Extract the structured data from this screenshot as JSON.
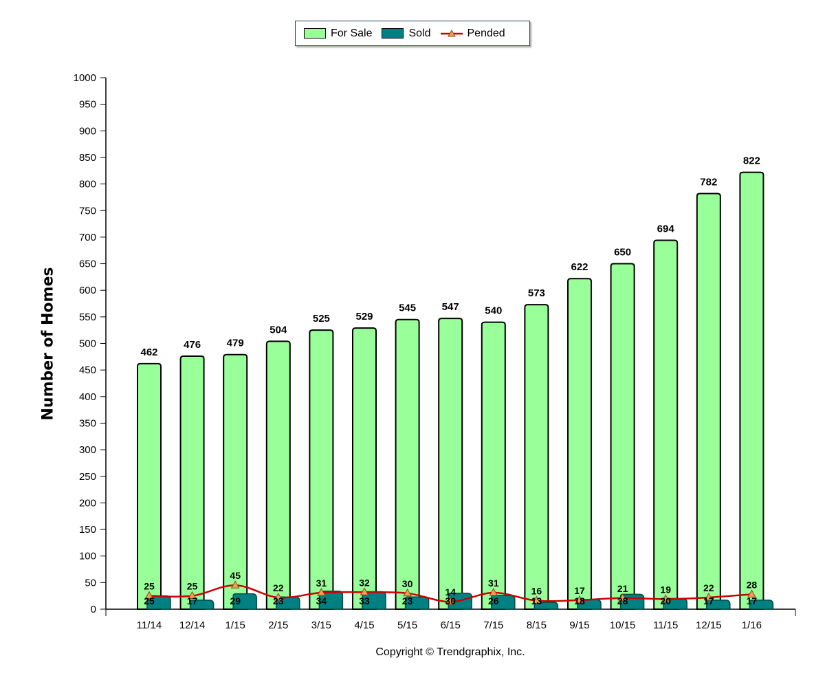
{
  "legend": {
    "for_sale": "For Sale",
    "sold": "Sold",
    "pended": "Pended"
  },
  "copyright": "Copyright © Trendgraphix, Inc.",
  "colors": {
    "for_sale": "#99ff99",
    "sold": "#008080",
    "pended_line": "#cc0000",
    "pended_marker": "#f0a050"
  },
  "chart_data": {
    "type": "bar",
    "title": "",
    "xlabel": "",
    "ylabel": "Number of Homes",
    "ylim": [
      0,
      1000
    ],
    "ytick_step": 50,
    "grid": false,
    "legend_position": "top-center",
    "categories": [
      "11/14",
      "12/14",
      "1/15",
      "2/15",
      "3/15",
      "4/15",
      "5/15",
      "6/15",
      "7/15",
      "8/15",
      "9/15",
      "10/15",
      "11/15",
      "12/15",
      "1/16"
    ],
    "series": [
      {
        "name": "For Sale",
        "type": "bar",
        "values": [
          462,
          476,
          479,
          504,
          525,
          529,
          545,
          547,
          540,
          573,
          622,
          650,
          694,
          782,
          822
        ]
      },
      {
        "name": "Sold",
        "type": "bar",
        "values": [
          25,
          17,
          29,
          23,
          34,
          33,
          23,
          30,
          26,
          13,
          18,
          28,
          20,
          17,
          17
        ]
      },
      {
        "name": "Pended",
        "type": "line",
        "values": [
          25,
          25,
          45,
          22,
          31,
          32,
          30,
          14,
          31,
          16,
          17,
          21,
          19,
          22,
          28
        ]
      }
    ]
  }
}
